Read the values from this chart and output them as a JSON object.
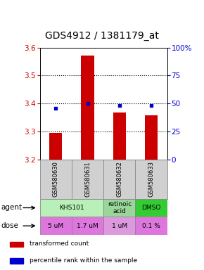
{
  "title": "GDS4912 / 1381179_at",
  "samples": [
    "GSM580630",
    "GSM580631",
    "GSM580632",
    "GSM580633"
  ],
  "bar_values": [
    3.295,
    3.572,
    3.368,
    3.357
  ],
  "bar_base": 3.2,
  "percentile_values": [
    46,
    50,
    48,
    48
  ],
  "ylim": [
    3.2,
    3.6
  ],
  "right_ylim": [
    0,
    100
  ],
  "yticks_left": [
    3.2,
    3.3,
    3.4,
    3.5,
    3.6
  ],
  "yticks_right_labels": [
    "0",
    "25",
    "50",
    "75",
    "100%"
  ],
  "yticks_right_vals": [
    0,
    25,
    50,
    75,
    100
  ],
  "hlines": [
    3.3,
    3.4,
    3.5
  ],
  "bar_color": "#cc0000",
  "dot_color": "#0000cc",
  "agents": [
    {
      "label": "KHS101",
      "span": [
        0,
        1
      ],
      "color": "#b8f0b8"
    },
    {
      "label": "retinoic\nacid",
      "span": [
        2,
        2
      ],
      "color": "#99d699"
    },
    {
      "label": "DMSO",
      "span": [
        3,
        3
      ],
      "color": "#33cc33"
    }
  ],
  "doses": [
    {
      "label": "5 uM",
      "span": [
        0,
        0
      ],
      "color": "#dd77dd"
    },
    {
      "label": "1.7 uM",
      "span": [
        1,
        1
      ],
      "color": "#dd77dd"
    },
    {
      "label": "1 uM",
      "span": [
        2,
        2
      ],
      "color": "#dd99dd"
    },
    {
      "label": "0.1 %",
      "span": [
        3,
        3
      ],
      "color": "#dd77dd"
    }
  ],
  "legend_items": [
    {
      "color": "#cc0000",
      "label": "transformed count"
    },
    {
      "color": "#0000cc",
      "label": "percentile rank within the sample"
    }
  ],
  "left_tick_color": "#cc0000",
  "right_tick_color": "#0000cc",
  "title_fontsize": 10,
  "tick_fontsize": 7.5,
  "bar_width": 0.4,
  "sample_color": "#d0d0d0",
  "bg_color": "#ffffff"
}
